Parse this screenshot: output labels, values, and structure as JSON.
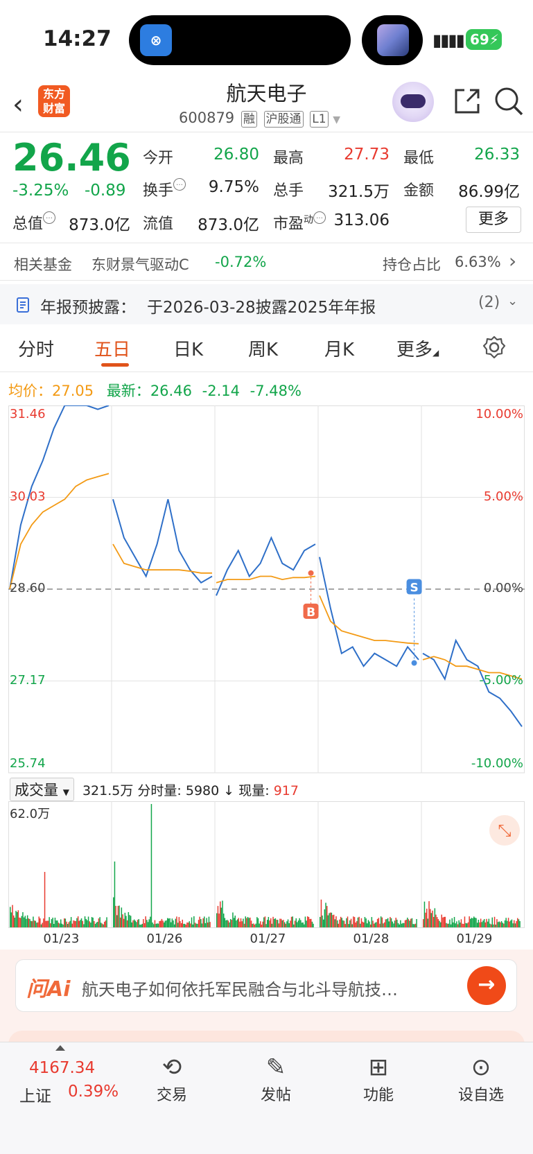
{
  "status_bar": {
    "time": "14:27",
    "battery": "69",
    "island_app": "中国铁路"
  },
  "header": {
    "logo_line1": "东方",
    "logo_line2": "财富",
    "stock_name": "航天电子",
    "stock_code": "600879",
    "tags": [
      "融",
      "沪股通",
      "L1"
    ]
  },
  "quote": {
    "price": "26.46",
    "change_pct": "-3.25%",
    "change": "-0.89",
    "open_label": "今开",
    "open": "26.80",
    "high_label": "最高",
    "high": "27.73",
    "low_label": "最低",
    "low": "26.33",
    "turnover_label": "换手",
    "turnover": "9.75%",
    "volume_label": "总手",
    "volume": "321.5万",
    "amount_label": "金额",
    "amount": "86.99亿",
    "mktcap_label": "总值",
    "mktcap": "873.0亿",
    "float_label": "流值",
    "float": "873.0亿",
    "pe_label": "市盈",
    "pe_sup": "动",
    "pe": "313.06",
    "more_label": "更多"
  },
  "fund_row": {
    "label": "相关基金",
    "fund": "东财景气驱动C",
    "fund_change": "-0.72%",
    "hold_label": "持仓占比",
    "hold": "6.63%"
  },
  "report_row": {
    "label": "年报预披露：",
    "text": "于2026-03-28披露2025年年报",
    "count": "(2)"
  },
  "tabs": [
    "分时",
    "五日",
    "日K",
    "周K",
    "月K",
    "更多"
  ],
  "chart_header": {
    "avg_label": "均价：",
    "avg": "27.05",
    "latest_label": "最新：",
    "latest": "26.46",
    "chg": "-2.14",
    "chg_pct": "-7.48%"
  },
  "chart_data": {
    "type": "line",
    "price_ticks": [
      "31.46",
      "30.03",
      "28.60",
      "27.17",
      "25.74"
    ],
    "pct_ticks": [
      "10.00%",
      "5.00%",
      "0.00%",
      "-5.00%",
      "-10.00%"
    ],
    "ylim": [
      25.74,
      31.46
    ],
    "base": 28.6,
    "days": [
      "01/23",
      "01/26",
      "01/27",
      "01/28",
      "01/29"
    ],
    "series": [
      {
        "values": [
          [
            28.6,
            29.6,
            30.2,
            30.6,
            31.1,
            31.46,
            31.46,
            31.46,
            31.4,
            31.46
          ],
          [
            30.0,
            29.4,
            29.1,
            28.8,
            29.3,
            30.0,
            29.2,
            28.9,
            28.7,
            28.8
          ],
          [
            28.5,
            28.9,
            29.2,
            28.8,
            29.0,
            29.4,
            29.0,
            28.9,
            29.2,
            29.3
          ],
          [
            29.1,
            28.3,
            27.6,
            27.7,
            27.4,
            27.6,
            27.5,
            27.4,
            27.7,
            27.5
          ],
          [
            27.6,
            27.5,
            27.2,
            27.8,
            27.5,
            27.4,
            27.0,
            26.9,
            26.7,
            26.46
          ]
        ]
      },
      {
        "values": [
          [
            28.6,
            29.3,
            29.6,
            29.8,
            29.9,
            30.0,
            30.2,
            30.3,
            30.35,
            30.4
          ],
          [
            29.3,
            29.0,
            28.95,
            28.9,
            28.9,
            28.9,
            28.9,
            28.88,
            28.85,
            28.85
          ],
          [
            28.7,
            28.75,
            28.75,
            28.75,
            28.8,
            28.8,
            28.75,
            28.78,
            28.78,
            28.8
          ],
          [
            28.5,
            28.1,
            27.95,
            27.9,
            27.85,
            27.8,
            27.8,
            27.78,
            27.76,
            27.75
          ],
          [
            27.5,
            27.55,
            27.5,
            27.4,
            27.4,
            27.35,
            27.3,
            27.3,
            27.25,
            27.2
          ]
        ]
      }
    ],
    "markers": [
      {
        "label": "B",
        "day": 2,
        "price": 28.85
      },
      {
        "label": "S",
        "day": 3,
        "price": 27.45
      }
    ]
  },
  "volume": {
    "select_label": "成交量",
    "total": "321.5万",
    "minute_label": "分时量:",
    "minute": "5980",
    "now_label": "现量:",
    "now": "917",
    "max_label": "62.0万"
  },
  "ai": {
    "logo": "问Ai",
    "text": "航天电子如何依托军民融合与北斗导航技…"
  },
  "bottom_nav": {
    "index_value": "4167.34",
    "index_name": "上证",
    "index_pct": "0.39%",
    "items": [
      {
        "label": "交易",
        "icon": "trade-icon"
      },
      {
        "label": "发帖",
        "icon": "post-icon"
      },
      {
        "label": "功能",
        "icon": "apps-icon"
      },
      {
        "label": "设自选",
        "icon": "more-icon"
      }
    ]
  }
}
